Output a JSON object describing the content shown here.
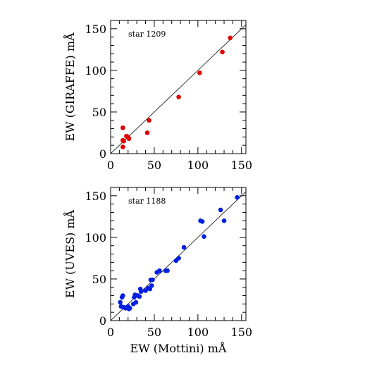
{
  "chart_data": [
    {
      "type": "scatter",
      "panel_label": "star 1209",
      "xlabel": "",
      "ylabel": "EW (GIRAFFE) mÅ",
      "xlim": [
        0,
        155
      ],
      "ylim": [
        0,
        160
      ],
      "x_ticks": [
        0,
        50,
        100,
        150
      ],
      "y_ticks": [
        0,
        50,
        100,
        150
      ],
      "identity_line": true,
      "point_color": "#e00000",
      "series": [
        {
          "points": [
            [
              14,
              8
            ],
            [
              14,
              16
            ],
            [
              15,
              15
            ],
            [
              14,
              31
            ],
            [
              20,
              20
            ],
            [
              21,
              18
            ],
            [
              18,
              21
            ],
            [
              42,
              25
            ],
            [
              44,
              40
            ],
            [
              78,
              68
            ],
            [
              102,
              97
            ],
            [
              128,
              122
            ],
            [
              137,
              139
            ]
          ]
        }
      ]
    },
    {
      "type": "scatter",
      "panel_label": "star 1188",
      "xlabel": "EW (Mottini) mÅ",
      "ylabel": "EW (UVES) mÅ",
      "xlim": [
        0,
        155
      ],
      "ylim": [
        0,
        160
      ],
      "x_ticks": [
        0,
        50,
        100,
        150
      ],
      "y_ticks": [
        0,
        50,
        100,
        150
      ],
      "identity_line": true,
      "point_color": "#0020e0",
      "series": [
        {
          "points": [
            [
              11,
              22
            ],
            [
              12,
              17
            ],
            [
              13,
              28
            ],
            [
              14,
              30
            ],
            [
              15,
              16
            ],
            [
              17,
              15
            ],
            [
              19,
              16
            ],
            [
              20,
              17
            ],
            [
              21,
              14
            ],
            [
              22,
              15
            ],
            [
              26,
              20
            ],
            [
              27,
              28
            ],
            [
              28,
              31
            ],
            [
              29,
              22
            ],
            [
              31,
              30
            ],
            [
              33,
              29
            ],
            [
              34,
              38
            ],
            [
              35,
              35
            ],
            [
              40,
              36
            ],
            [
              43,
              39
            ],
            [
              45,
              38
            ],
            [
              46,
              49
            ],
            [
              47,
              42
            ],
            [
              48,
              49
            ],
            [
              53,
              58
            ],
            [
              56,
              60
            ],
            [
              63,
              60
            ],
            [
              65,
              60
            ],
            [
              75,
              72
            ],
            [
              78,
              75
            ],
            [
              84,
              88
            ],
            [
              103,
              120
            ],
            [
              105,
              119
            ],
            [
              107,
              101
            ],
            [
              126,
              133
            ],
            [
              130,
              120
            ],
            [
              145,
              148
            ]
          ]
        }
      ]
    }
  ]
}
